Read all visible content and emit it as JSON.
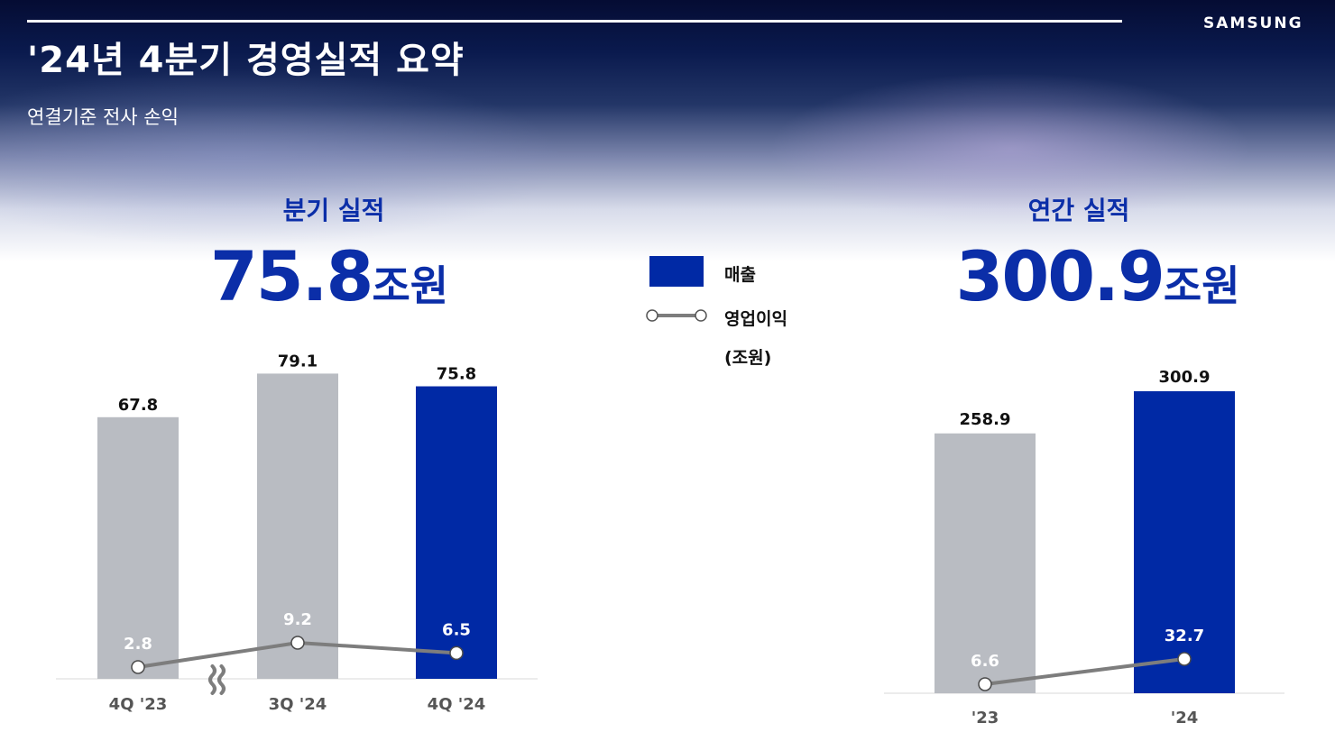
{
  "header": {
    "brand": "SAMSUNG",
    "title": "'24년 4분기 경영실적 요약",
    "subtitle": "연결기준 전사 손익"
  },
  "quarterly": {
    "section_title": "분기 실적",
    "headline_value": "75.8",
    "headline_unit": "조원"
  },
  "annual": {
    "section_title": "연간 실적",
    "headline_value": "300.9",
    "headline_unit": "조원"
  },
  "legend": {
    "revenue_label": "매출",
    "op_profit_label": "영업이익",
    "unit_label": "(조원)"
  },
  "colors": {
    "current": "#0029a5",
    "prior": "#b9bcc2",
    "line": "#7d7d7d",
    "accent_text": "#0b2ea8"
  },
  "icons": {
    "axis_break": "wavy-break-icon"
  },
  "chart_data": [
    {
      "type": "bar",
      "title": "분기 실적",
      "categories": [
        "4Q '23",
        "3Q '24",
        "4Q '24"
      ],
      "series": [
        {
          "name": "매출",
          "values": [
            67.8,
            79.1,
            75.8
          ],
          "labels": [
            "67.8",
            "79.1",
            "75.8"
          ],
          "colors": [
            "#b9bcc2",
            "#b9bcc2",
            "#0029a5"
          ]
        },
        {
          "name": "영업이익",
          "values": [
            2.8,
            9.2,
            6.5
          ],
          "labels": [
            "2.8",
            "9.2",
            "6.5"
          ]
        }
      ],
      "axis_break_after": 0,
      "unit": "(조원)",
      "legend": "center"
    },
    {
      "type": "bar",
      "title": "연간 실적",
      "categories": [
        "'23",
        "'24"
      ],
      "series": [
        {
          "name": "매출",
          "values": [
            258.9,
            300.9
          ],
          "labels": [
            "258.9",
            "300.9"
          ],
          "colors": [
            "#b9bcc2",
            "#0029a5"
          ]
        },
        {
          "name": "영업이익",
          "values": [
            6.6,
            32.7
          ],
          "labels": [
            "6.6",
            "32.7"
          ]
        }
      ],
      "unit": "(조원)",
      "legend": "center"
    }
  ]
}
